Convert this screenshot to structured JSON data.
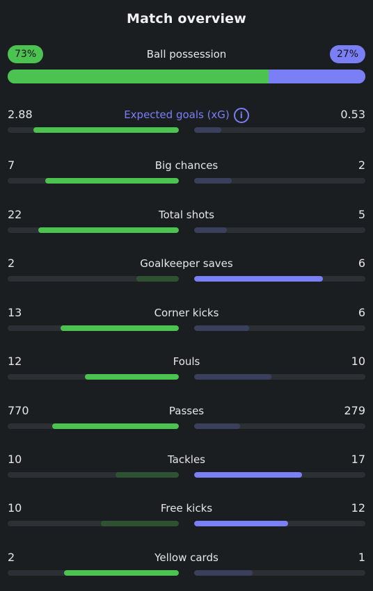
{
  "title": "Match overview",
  "possession": {
    "label": "Ball possession",
    "home": "73%",
    "away": "27%",
    "home_value": 73,
    "away_value": 27
  },
  "colors": {
    "home": "#4cc251",
    "away": "#7b7ff6"
  },
  "info_icon": "info-icon",
  "stats": [
    {
      "key": "xg",
      "label": "Expected goals (xG)",
      "home": "2.88",
      "away": "0.53",
      "home_frac": 0.85,
      "away_frac": 0.16,
      "accent": true,
      "info": true
    },
    {
      "key": "big-chances",
      "label": "Big chances",
      "home": "7",
      "away": "2",
      "home_frac": 0.78,
      "away_frac": 0.22
    },
    {
      "key": "total-shots",
      "label": "Total shots",
      "home": "22",
      "away": "5",
      "home_frac": 0.82,
      "away_frac": 0.19
    },
    {
      "key": "goalkeeper-saves",
      "label": "Goalkeeper saves",
      "home": "2",
      "away": "6",
      "home_frac": 0.25,
      "away_frac": 0.75
    },
    {
      "key": "corner-kicks",
      "label": "Corner kicks",
      "home": "13",
      "away": "6",
      "home_frac": 0.69,
      "away_frac": 0.32
    },
    {
      "key": "fouls",
      "label": "Fouls",
      "home": "12",
      "away": "10",
      "home_frac": 0.55,
      "away_frac": 0.45
    },
    {
      "key": "passes",
      "label": "Passes",
      "home": "770",
      "away": "279",
      "home_frac": 0.74,
      "away_frac": 0.27
    },
    {
      "key": "tackles",
      "label": "Tackles",
      "home": "10",
      "away": "17",
      "home_frac": 0.37,
      "away_frac": 0.63
    },
    {
      "key": "free-kicks",
      "label": "Free kicks",
      "home": "10",
      "away": "12",
      "home_frac": 0.455,
      "away_frac": 0.55
    },
    {
      "key": "yellow-cards",
      "label": "Yellow cards",
      "home": "2",
      "away": "1",
      "home_frac": 0.67,
      "away_frac": 0.34
    }
  ]
}
